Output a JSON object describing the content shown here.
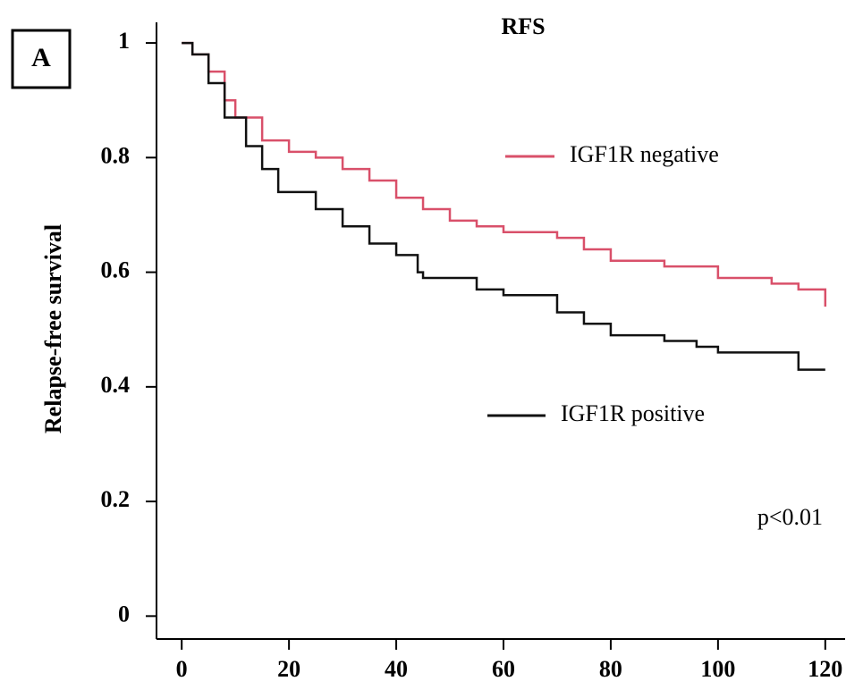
{
  "chart_data": {
    "type": "line",
    "step": true,
    "panel_label": "A",
    "title": "RFS",
    "y_label": "Relapse-free survival",
    "annotation": "p<0.01",
    "xlim": [
      -4.7,
      123.7
    ],
    "ylim": [
      -0.04,
      1.036
    ],
    "xticks": [
      0,
      20,
      40,
      60,
      80,
      100,
      120
    ],
    "yticks": [
      0,
      0.2,
      0.4,
      0.6,
      0.8,
      1
    ],
    "series": [
      {
        "name": "IGF1R negative",
        "color": "#d9506a",
        "x": [
          0,
          2,
          5,
          8,
          10,
          15,
          20,
          25,
          30,
          35,
          40,
          45,
          50,
          55,
          60,
          70,
          75,
          80,
          90,
          100,
          110,
          115,
          120
        ],
        "values": [
          1,
          0.98,
          0.95,
          0.9,
          0.87,
          0.83,
          0.81,
          0.8,
          0.78,
          0.76,
          0.73,
          0.71,
          0.69,
          0.68,
          0.67,
          0.66,
          0.64,
          0.62,
          0.61,
          0.59,
          0.58,
          0.57,
          0.54
        ]
      },
      {
        "name": "IGF1R positive",
        "color": "#111111",
        "x": [
          0,
          2,
          5,
          8,
          12,
          15,
          18,
          25,
          30,
          35,
          40,
          44,
          45,
          50,
          55,
          60,
          70,
          75,
          80,
          90,
          96,
          100,
          110,
          115,
          120
        ],
        "values": [
          1,
          0.98,
          0.93,
          0.87,
          0.82,
          0.78,
          0.74,
          0.71,
          0.68,
          0.65,
          0.63,
          0.6,
          0.59,
          0.59,
          0.57,
          0.56,
          0.53,
          0.51,
          0.49,
          0.48,
          0.47,
          0.46,
          0.46,
          0.43,
          0.43
        ]
      }
    ]
  }
}
